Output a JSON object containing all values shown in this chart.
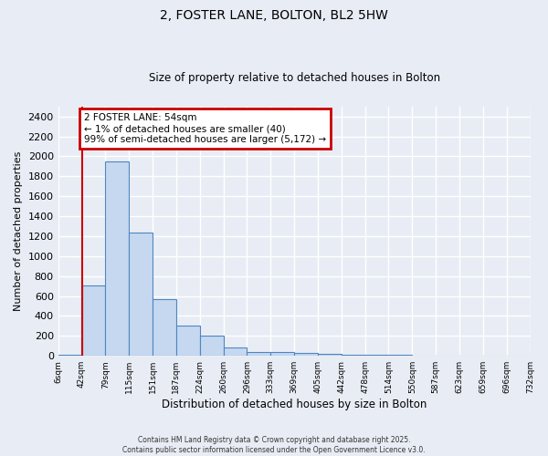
{
  "title1": "2, FOSTER LANE, BOLTON, BL2 5HW",
  "title2": "Size of property relative to detached houses in Bolton",
  "xlabel": "Distribution of detached houses by size in Bolton",
  "ylabel": "Number of detached properties",
  "bar_values": [
    15,
    710,
    1950,
    1240,
    570,
    305,
    200,
    80,
    40,
    35,
    30,
    20,
    15,
    10,
    8,
    5,
    5,
    4,
    3,
    3
  ],
  "bin_labels": [
    "6sqm",
    "42sqm",
    "79sqm",
    "115sqm",
    "151sqm",
    "187sqm",
    "224sqm",
    "260sqm",
    "296sqm",
    "333sqm",
    "369sqm",
    "405sqm",
    "442sqm",
    "478sqm",
    "514sqm",
    "550sqm",
    "587sqm",
    "623sqm",
    "659sqm",
    "696sqm",
    "732sqm"
  ],
  "bar_color": "#c5d8f0",
  "bar_edge_color": "#4f86c0",
  "red_line_x": 1.0,
  "annotation_text": "2 FOSTER LANE: 54sqm\n← 1% of detached houses are smaller (40)\n99% of semi-detached houses are larger (5,172) →",
  "annotation_box_color": "#ffffff",
  "annotation_box_edge": "#cc0000",
  "red_line_color": "#cc0000",
  "ylim": [
    0,
    2500
  ],
  "yticks": [
    0,
    200,
    400,
    600,
    800,
    1000,
    1200,
    1400,
    1600,
    1800,
    2000,
    2200,
    2400
  ],
  "background_color": "#e8edf5",
  "grid_color": "#d0d8e8",
  "footer1": "Contains HM Land Registry data © Crown copyright and database right 2025.",
  "footer2": "Contains public sector information licensed under the Open Government Licence v3.0."
}
